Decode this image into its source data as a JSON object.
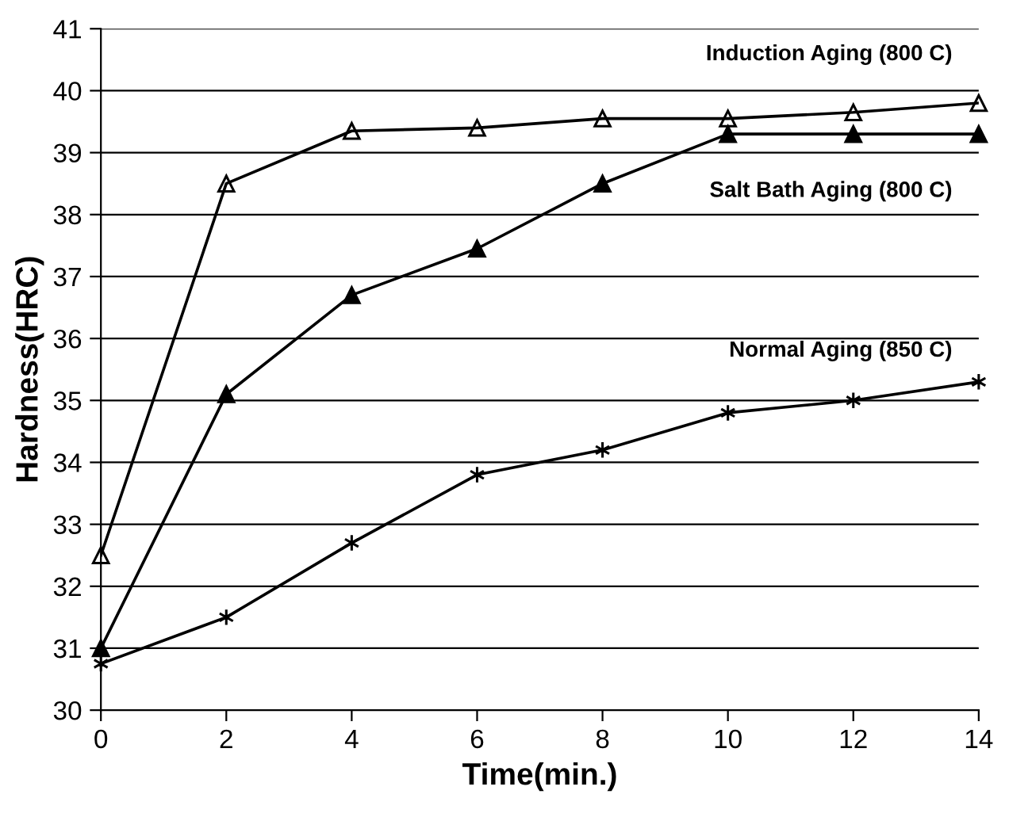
{
  "chart_data": {
    "type": "line",
    "xlabel": "Time(min.)",
    "ylabel": "Hardness(HRC)",
    "x": [
      0,
      2,
      4,
      6,
      8,
      10,
      12,
      14
    ],
    "series": [
      {
        "name": "Induction Aging (800 C)",
        "color": "#000000",
        "marker": "triangle",
        "values": [
          32.5,
          38.5,
          39.35,
          39.4,
          39.55,
          39.55,
          39.65,
          39.8
        ]
      },
      {
        "name": "Salt Bath Aging (800 C)",
        "color": "#000000",
        "marker": "triangle",
        "values": [
          31.0,
          35.1,
          36.7,
          37.45,
          38.5,
          39.3,
          39.3,
          39.3
        ]
      },
      {
        "name": "Normal Aging (850 C)",
        "color": "#000000",
        "marker": "cross",
        "values": [
          30.75,
          31.5,
          32.7,
          33.8,
          34.2,
          34.8,
          35.0,
          35.3
        ]
      }
    ],
    "xlim": [
      0,
      14
    ],
    "xticks": [
      0,
      2,
      4,
      6,
      8,
      10,
      12,
      14
    ],
    "ylim": [
      30,
      41
    ],
    "yticks": [
      30,
      31,
      32,
      33,
      34,
      35,
      36,
      37,
      38,
      39,
      40,
      41
    ],
    "grid": "y",
    "line_style": "solid"
  }
}
